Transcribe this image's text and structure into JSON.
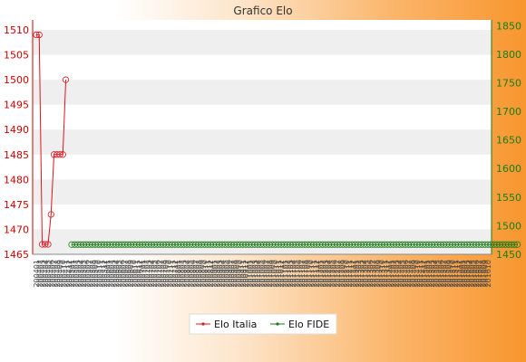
{
  "chart_data": {
    "type": "line",
    "title": "Grafico Elo",
    "y_left_ticks": [
      1465,
      1470,
      1475,
      1480,
      1485,
      1490,
      1495,
      1500,
      1505,
      1510
    ],
    "y_left_range": [
      1465,
      1512
    ],
    "y_right_ticks": [
      1450,
      1500,
      1550,
      1600,
      1650,
      1700,
      1750,
      1800,
      1850
    ],
    "y_right_range": [
      1450,
      1860
    ],
    "grid": "horizontal bands",
    "legend_position": "bottom",
    "colors": {
      "italia": "#e0141e",
      "fide": "#1c7a17",
      "band": "#efefef",
      "axis_left": "#d10000",
      "axis_right": "#177f10"
    },
    "x_labels": [
      "200401",
      "200402",
      "200403",
      "200404",
      "200405",
      "200406",
      "200407",
      "200408",
      "200409",
      "200410",
      "200411",
      "200412",
      "200501",
      "200502",
      "200503",
      "200504",
      "200505",
      "200506",
      "200507",
      "200508",
      "200509",
      "200510",
      "200511",
      "200512",
      "200601",
      "200602",
      "200603",
      "200604",
      "200605",
      "200606",
      "200607",
      "200608",
      "200609",
      "200610",
      "200611",
      "200612",
      "200701",
      "200702",
      "200703",
      "200704",
      "200705",
      "200706",
      "200707",
      "200708",
      "200709",
      "200710",
      "200711",
      "200712",
      "200801",
      "200802",
      "200803",
      "200804",
      "200805",
      "200806",
      "200807",
      "200808",
      "200809",
      "200810",
      "200811",
      "200812",
      "200901",
      "200902",
      "200903",
      "200904",
      "200905",
      "200906",
      "200907",
      "200908",
      "200909",
      "200910",
      "200911",
      "200912",
      "201001",
      "201002",
      "201003",
      "201004",
      "201005",
      "201006",
      "201007",
      "201008",
      "201009",
      "201010",
      "201011",
      "201012",
      "201101",
      "201102",
      "201103",
      "201104",
      "201105",
      "201106",
      "201107",
      "201108",
      "201109",
      "201110",
      "201111",
      "201112",
      "201201",
      "201202",
      "201203",
      "201204",
      "201205",
      "201206",
      "201207",
      "201208",
      "201209",
      "201210",
      "201211",
      "201212",
      "201301",
      "201302",
      "201303",
      "201304",
      "201305",
      "201306",
      "201307",
      "201308",
      "201309",
      "201310",
      "201311",
      "201312",
      "201401",
      "201402",
      "201403",
      "201404",
      "201405",
      "201406",
      "201407",
      "201408",
      "201409",
      "201410",
      "201411",
      "201412",
      "201501",
      "201502",
      "201503",
      "201504",
      "201505",
      "201506",
      "201507",
      "201508",
      "201509",
      "201510",
      "201511",
      "201512",
      "201601",
      "201602",
      "201603",
      "201604",
      "201605",
      "201606",
      "201607",
      "201608",
      "201609",
      "201610"
    ],
    "series": [
      {
        "name": "Elo Italia",
        "axis": "left",
        "values": [
          1509,
          1509,
          1467,
          1467,
          1467,
          1473,
          1485,
          1485,
          1485,
          1485,
          1500
        ]
      },
      {
        "name": "Elo FIDE",
        "axis": "right",
        "start_index": 12,
        "values": [
          1467,
          1467,
          1467,
          1467,
          1467,
          1467,
          1467,
          1467,
          1467,
          1467,
          1467,
          1467,
          1467,
          1467,
          1467,
          1467,
          1467,
          1467,
          1467,
          1467,
          1467,
          1467,
          1467,
          1467,
          1467,
          1467,
          1467,
          1467,
          1467,
          1467,
          1467,
          1467,
          1467,
          1467,
          1467,
          1467,
          1467,
          1467,
          1467,
          1467,
          1467,
          1467,
          1467,
          1467,
          1467,
          1467,
          1467,
          1467,
          1467,
          1467,
          1467,
          1467,
          1467,
          1467,
          1467,
          1467,
          1467,
          1467,
          1467,
          1467,
          1467,
          1467,
          1467,
          1467,
          1467,
          1467,
          1467,
          1467,
          1467,
          1467,
          1467,
          1467,
          1467,
          1467,
          1467,
          1467,
          1467,
          1467,
          1467,
          1467,
          1467,
          1467,
          1467,
          1467,
          1467,
          1467,
          1467,
          1467,
          1467,
          1467,
          1467,
          1467,
          1467,
          1467,
          1467,
          1467,
          1467,
          1467,
          1467,
          1467,
          1467,
          1467,
          1467,
          1467,
          1467,
          1467,
          1467,
          1467,
          1467,
          1467,
          1467,
          1467,
          1467,
          1467,
          1467,
          1467,
          1467,
          1467,
          1467,
          1467,
          1467,
          1467,
          1467,
          1467,
          1467,
          1467,
          1467,
          1467,
          1467,
          1467,
          1467,
          1467,
          1467,
          1467,
          1467,
          1467,
          1467,
          1467,
          1467,
          1467,
          1467,
          1467,
          1467,
          1467,
          1467,
          1467,
          1467,
          1467,
          1467,
          1467,
          1467,
          1467
        ]
      }
    ]
  }
}
